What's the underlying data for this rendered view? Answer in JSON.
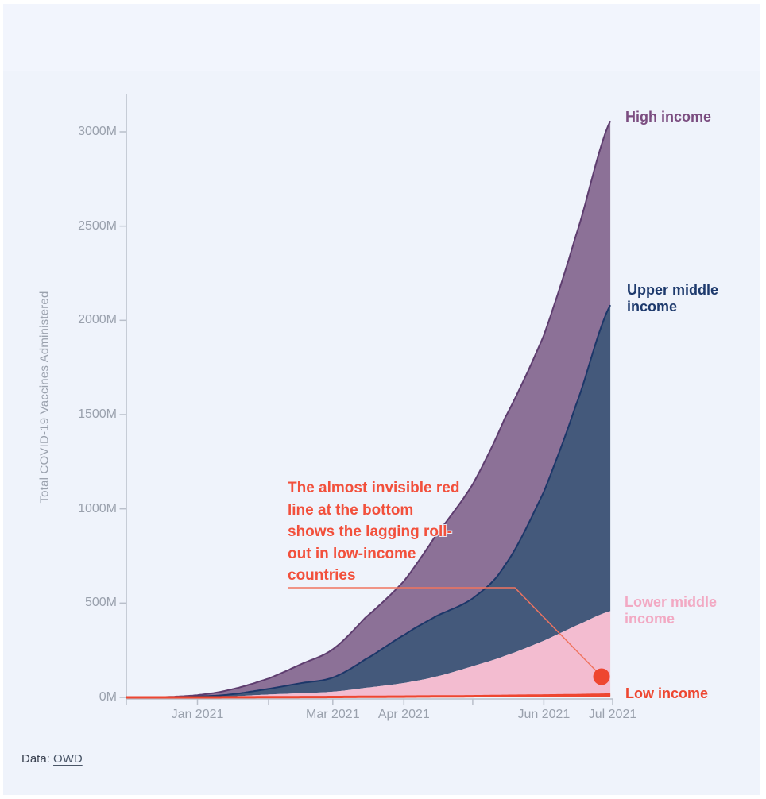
{
  "page": {
    "background": "#ffffff",
    "card_background": "#eff3fb",
    "card_top_background": "#f2f5fd"
  },
  "footer": {
    "prefix": "Data:",
    "link": "OWD"
  },
  "chart_data": {
    "type": "area",
    "stacked": true,
    "title": "",
    "ylabel": "Total COVID-19 Vaccines Administered",
    "unit": "million doses (M)",
    "ylim": [
      0,
      3200
    ],
    "grid": false,
    "legend_position": "right edge colored text labels",
    "axis_color": "#b9bfca",
    "tick_label_color": "#9aa1ad",
    "x_range": [
      "Dec 2020",
      "Jul 2021"
    ],
    "x_ticks": [
      {
        "day": 0,
        "label": ""
      },
      {
        "day": 31,
        "label": "Jan 2021"
      },
      {
        "day": 62,
        "label": ""
      },
      {
        "day": 90,
        "label": "Mar 2021"
      },
      {
        "day": 121,
        "label": "Apr 2021"
      },
      {
        "day": 151,
        "label": ""
      },
      {
        "day": 182,
        "label": "Jun 2021"
      },
      {
        "day": 212,
        "label": "Jul 2021"
      }
    ],
    "y_ticks": [
      {
        "value": 0,
        "label": "0M"
      },
      {
        "value": 500,
        "label": "500M"
      },
      {
        "value": 1000,
        "label": "1000M"
      },
      {
        "value": 1500,
        "label": "1500M"
      },
      {
        "value": 2000,
        "label": "2000M"
      },
      {
        "value": 2500,
        "label": "2500M"
      },
      {
        "value": 3000,
        "label": "3000M"
      }
    ],
    "point_dates": [
      "Dec 1 2020",
      "Dec 15 2020",
      "Jan 1 2021",
      "Jan 15 2021",
      "Feb 1 2021",
      "Feb 15 2021",
      "Mar 1 2021",
      "Mar 15 2021",
      "Apr 1 2021",
      "Apr 15 2021",
      "May 1 2021",
      "May 15 2021",
      "Jun 1 2021",
      "Jun 15 2021",
      "Jul 1 2021"
    ],
    "point_days": [
      0,
      14,
      31,
      45,
      62,
      76,
      90,
      104,
      121,
      135,
      151,
      165,
      182,
      196,
      212
    ],
    "series": [
      {
        "name": "High income",
        "label": "High income",
        "fill": "#8c7197",
        "stroke": "#5e3d6f",
        "label_color": "#7b4d80",
        "values": [
          0,
          0.5,
          7,
          25,
          55,
          100,
          150,
          220,
          286,
          430,
          605,
          780,
          830,
          900,
          980
        ]
      },
      {
        "name": "Upper middle income",
        "label": "Upper middle\nincome",
        "fill": "#44597b",
        "stroke": "#1c3769",
        "label_color": "#1e3a6d",
        "values": [
          0,
          0.5,
          4,
          10,
          30,
          53,
          75,
          150,
          254,
          320,
          360,
          480,
          790,
          1170,
          1640
        ]
      },
      {
        "name": "Lower middle income",
        "label": "Lower middle\nincome",
        "fill": "#f3bcd0",
        "stroke": "#f3bcd0",
        "label_color": "#f2a9c3",
        "values": [
          0,
          0,
          1,
          4.7,
          14.2,
          20.5,
          28,
          47,
          72,
          105,
          159,
          212,
          290,
          368,
          445
        ]
      },
      {
        "name": "Low income",
        "label": "Low income",
        "fill": "#ee4630",
        "stroke": "#ee4630",
        "label_color": "#ee4630",
        "values": [
          0,
          0,
          0,
          0.3,
          0.8,
          1.5,
          2,
          3,
          4,
          5,
          6,
          8,
          10,
          12,
          15
        ]
      }
    ],
    "annotation": {
      "lines": [
        "The almost invisible red",
        "line at the bottom",
        "shows the lagging roll-",
        "out in low-income",
        "countries"
      ],
      "color": "#f2503c",
      "connector_color": "#f0745f",
      "dot_color": "#ee4630"
    }
  }
}
